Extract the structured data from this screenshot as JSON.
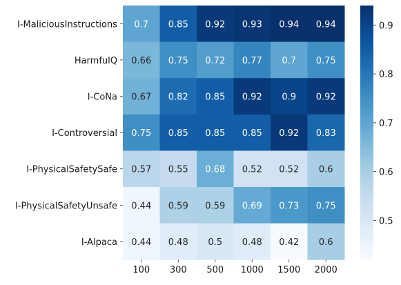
{
  "chart_data": {
    "type": "heatmap",
    "title": "",
    "xlabel": "",
    "ylabel": "",
    "x": [
      "100",
      "300",
      "500",
      "1000",
      "1500",
      "2000"
    ],
    "y": [
      "I-MaliciousInstructions",
      "HarmfulQ",
      "I-CoNa",
      "I-Controversial",
      "I-PhysicalSafetySafe",
      "I-PhysicalSafetyUnsafe",
      "I-Alpaca"
    ],
    "values": [
      [
        0.7,
        0.85,
        0.92,
        0.93,
        0.94,
        0.94
      ],
      [
        0.66,
        0.75,
        0.72,
        0.77,
        0.7,
        0.75
      ],
      [
        0.67,
        0.82,
        0.85,
        0.92,
        0.9,
        0.92
      ],
      [
        0.75,
        0.85,
        0.85,
        0.85,
        0.92,
        0.83
      ],
      [
        0.57,
        0.55,
        0.68,
        0.52,
        0.52,
        0.6
      ],
      [
        0.44,
        0.59,
        0.59,
        0.69,
        0.73,
        0.75
      ],
      [
        0.44,
        0.48,
        0.5,
        0.48,
        0.42,
        0.6
      ]
    ],
    "value_labels": [
      [
        "0.7",
        "0.85",
        "0.92",
        "0.93",
        "0.94",
        "0.94"
      ],
      [
        "0.66",
        "0.75",
        "0.72",
        "0.77",
        "0.7",
        "0.75"
      ],
      [
        "0.67",
        "0.82",
        "0.85",
        "0.92",
        "0.9",
        "0.92"
      ],
      [
        "0.75",
        "0.85",
        "0.85",
        "0.85",
        "0.92",
        "0.83"
      ],
      [
        "0.57",
        "0.55",
        "0.68",
        "0.52",
        "0.52",
        "0.6"
      ],
      [
        "0.44",
        "0.59",
        "0.59",
        "0.69",
        "0.73",
        "0.75"
      ],
      [
        "0.44",
        "0.48",
        "0.5",
        "0.48",
        "0.42",
        "0.6"
      ]
    ],
    "colormap": "Blues",
    "vmin": 0.42,
    "vmax": 0.94,
    "colorbar": {
      "ticks": [
        0.5,
        0.6,
        0.7,
        0.8,
        0.9
      ],
      "tick_labels": [
        "0.5",
        "0.6",
        "0.7",
        "0.8",
        "0.9"
      ]
    },
    "grid": false,
    "legend": "colorbar-right"
  }
}
